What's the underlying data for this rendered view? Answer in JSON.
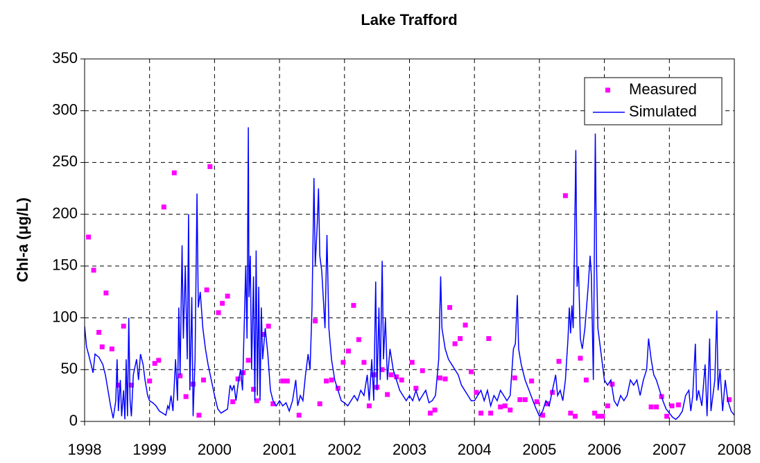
{
  "chart_data": {
    "type": "line",
    "title": "Lake Trafford",
    "ylabel": "Chl-a (μg/L)",
    "xlim": [
      1998,
      2008
    ],
    "xticks": [
      1998,
      1999,
      2000,
      2001,
      2002,
      2003,
      2004,
      2005,
      2006,
      2007,
      2008
    ],
    "ylim": [
      0,
      350
    ],
    "yticks": [
      0,
      50,
      100,
      150,
      200,
      250,
      300,
      350
    ],
    "grid": true,
    "legend": "upper right",
    "series": [
      {
        "name": "Measured",
        "type": "scatter",
        "color": "#ff00ff",
        "x": [
          1998.06,
          1998.14,
          1998.22,
          1998.27,
          1998.33,
          1998.42,
          1998.52,
          1998.6,
          1998.72,
          1999.0,
          1999.08,
          1999.14,
          1999.22,
          1999.38,
          1999.47,
          1999.56,
          1999.67,
          1999.76,
          1999.83,
          1999.88,
          1999.93,
          2000.06,
          2000.12,
          2000.2,
          2000.28,
          2000.36,
          2000.44,
          2000.52,
          2000.6,
          2000.65,
          2000.75,
          2000.83,
          2000.9,
          2001.05,
          2001.12,
          2001.3,
          2001.55,
          2001.62,
          2001.72,
          2001.8,
          2001.9,
          2001.98,
          2002.06,
          2002.14,
          2002.22,
          2002.3,
          2002.38,
          2002.45,
          2002.5,
          2002.58,
          2002.66,
          2002.72,
          2002.8,
          2002.88,
          2003.04,
          2003.1,
          2003.2,
          2003.32,
          2003.39,
          2003.47,
          2003.55,
          2003.62,
          2003.7,
          2003.78,
          2003.86,
          2003.95,
          2004.03,
          2004.1,
          2004.22,
          2004.25,
          2004.4,
          2004.47,
          2004.55,
          2004.62,
          2004.7,
          2004.78,
          2004.88,
          2004.96,
          2005.05,
          2005.12,
          2005.2,
          2005.3,
          2005.4,
          2005.48,
          2005.55,
          2005.63,
          2005.72,
          2005.85,
          2005.9,
          2005.97,
          2006.05,
          2006.12,
          2006.72,
          2006.8,
          2006.88,
          2006.96,
          2007.04,
          2007.14,
          2007.92
        ],
        "values": [
          178,
          146,
          86,
          72,
          124,
          70,
          35,
          92,
          35,
          39,
          56,
          59,
          207,
          240,
          44,
          24,
          36,
          6,
          40,
          127,
          246,
          105,
          114,
          121,
          19,
          41,
          47,
          59,
          31,
          20,
          84,
          92,
          17,
          39,
          39,
          6,
          97,
          17,
          39,
          40,
          32,
          57,
          68,
          112,
          79,
          57,
          15,
          45,
          33,
          50,
          26,
          45,
          43,
          40,
          57,
          32,
          49,
          8,
          11,
          42,
          41,
          110,
          75,
          80,
          93,
          48,
          28,
          8,
          80,
          8,
          14,
          15,
          11,
          42,
          21,
          21,
          39,
          19,
          6,
          17,
          28,
          58,
          218,
          8,
          5,
          61,
          40,
          8,
          5,
          5,
          15,
          36,
          14,
          14,
          24,
          5,
          15,
          16,
          21
        ]
      },
      {
        "name": "Simulated",
        "type": "line",
        "color": "#0000ff",
        "x": [
          1998.0,
          1998.03,
          1998.06,
          1998.1,
          1998.13,
          1998.16,
          1998.22,
          1998.28,
          1998.32,
          1998.36,
          1998.4,
          1998.44,
          1998.48,
          1998.5,
          1998.52,
          1998.55,
          1998.57,
          1998.6,
          1998.62,
          1998.64,
          1998.66,
          1998.68,
          1998.7,
          1998.72,
          1998.75,
          1998.8,
          1998.83,
          1998.86,
          1998.9,
          1998.93,
          1998.97,
          1999.0,
          1999.05,
          1999.1,
          1999.15,
          1999.2,
          1999.25,
          1999.28,
          1999.3,
          1999.33,
          1999.36,
          1999.4,
          1999.43,
          1999.45,
          1999.47,
          1999.5,
          1999.52,
          1999.55,
          1999.58,
          1999.6,
          1999.62,
          1999.65,
          1999.67,
          1999.7,
          1999.73,
          1999.75,
          1999.78,
          1999.82,
          1999.86,
          1999.9,
          1999.95,
          2000.0,
          2000.05,
          2000.1,
          2000.15,
          2000.2,
          2000.24,
          2000.27,
          2000.3,
          2000.33,
          2000.37,
          2000.4,
          2000.43,
          2000.46,
          2000.48,
          2000.5,
          2000.52,
          2000.53,
          2000.55,
          2000.57,
          2000.6,
          2000.62,
          2000.64,
          2000.66,
          2000.68,
          2000.7,
          2000.72,
          2000.74,
          2000.78,
          2000.82,
          2000.86,
          2000.9,
          2000.95,
          2001.0,
          2001.05,
          2001.1,
          2001.15,
          2001.2,
          2001.25,
          2001.28,
          2001.32,
          2001.36,
          2001.4,
          2001.44,
          2001.47,
          2001.5,
          2001.53,
          2001.55,
          2001.58,
          2001.6,
          2001.62,
          2001.65,
          2001.7,
          2001.73,
          2001.76,
          2001.8,
          2001.85,
          2001.9,
          2001.95,
          2002.0,
          2002.05,
          2002.1,
          2002.15,
          2002.2,
          2002.25,
          2002.3,
          2002.35,
          2002.38,
          2002.42,
          2002.45,
          2002.48,
          2002.5,
          2002.53,
          2002.55,
          2002.58,
          2002.6,
          2002.63,
          2002.66,
          2002.7,
          2002.75,
          2002.8,
          2002.85,
          2002.9,
          2002.95,
          2003.0,
          2003.05,
          2003.1,
          2003.15,
          2003.2,
          2003.25,
          2003.3,
          2003.35,
          2003.4,
          2003.45,
          2003.48,
          2003.5,
          2003.55,
          2003.6,
          2003.65,
          2003.7,
          2003.75,
          2003.8,
          2003.85,
          2003.9,
          2003.95,
          2004.0,
          2004.05,
          2004.1,
          2004.15,
          2004.2,
          2004.25,
          2004.3,
          2004.35,
          2004.4,
          2004.45,
          2004.5,
          2004.55,
          2004.6,
          2004.63,
          2004.66,
          2004.68,
          2004.72,
          2004.78,
          2004.84,
          2004.9,
          2004.95,
          2005.0,
          2005.05,
          2005.1,
          2005.15,
          2005.2,
          2005.25,
          2005.28,
          2005.32,
          2005.36,
          2005.4,
          2005.44,
          2005.46,
          2005.48,
          2005.5,
          2005.52,
          2005.54,
          2005.56,
          2005.58,
          2005.6,
          2005.63,
          2005.66,
          2005.7,
          2005.75,
          2005.78,
          2005.8,
          2005.83,
          2005.86,
          2005.88,
          2005.9,
          2005.94,
          2005.98,
          2006.0,
          2006.05,
          2006.1,
          2006.15,
          2006.2,
          2006.25,
          2006.3,
          2006.35,
          2006.4,
          2006.45,
          2006.5,
          2006.55,
          2006.6,
          2006.65,
          2006.68,
          2006.72,
          2006.76,
          2006.8,
          2006.85,
          2006.9,
          2006.95,
          2007.0,
          2007.05,
          2007.1,
          2007.15,
          2007.2,
          2007.25,
          2007.3,
          2007.33,
          2007.36,
          2007.4,
          2007.42,
          2007.45,
          2007.5,
          2007.55,
          2007.58,
          2007.62,
          2007.64,
          2007.66,
          2007.7,
          2007.73,
          2007.75,
          2007.78,
          2007.82,
          2007.86,
          2007.9,
          2007.95,
          2008.0
        ],
        "values": [
          92,
          72,
          65,
          55,
          47,
          65,
          62,
          55,
          45,
          30,
          15,
          3,
          20,
          60,
          10,
          40,
          5,
          30,
          2,
          60,
          5,
          100,
          20,
          5,
          45,
          60,
          40,
          65,
          55,
          40,
          25,
          20,
          18,
          15,
          10,
          8,
          6,
          15,
          12,
          25,
          10,
          60,
          20,
          110,
          45,
          170,
          80,
          150,
          60,
          200,
          30,
          120,
          5,
          60,
          220,
          110,
          125,
          90,
          70,
          55,
          40,
          25,
          12,
          8,
          10,
          12,
          35,
          30,
          35,
          20,
          40,
          50,
          30,
          100,
          150,
          80,
          284,
          120,
          160,
          50,
          140,
          20,
          165,
          25,
          130,
          20,
          110,
          60,
          90,
          65,
          30,
          20,
          15,
          20,
          15,
          18,
          10,
          20,
          40,
          15,
          25,
          20,
          45,
          65,
          50,
          110,
          235,
          150,
          190,
          225,
          160,
          145,
          90,
          180,
          90,
          60,
          40,
          30,
          20,
          18,
          15,
          20,
          25,
          20,
          30,
          25,
          45,
          20,
          60,
          20,
          135,
          30,
          110,
          40,
          155,
          60,
          100,
          40,
          70,
          50,
          40,
          30,
          25,
          20,
          25,
          20,
          30,
          20,
          25,
          30,
          18,
          20,
          25,
          60,
          140,
          90,
          70,
          60,
          55,
          50,
          45,
          35,
          30,
          25,
          20,
          20,
          25,
          30,
          20,
          30,
          15,
          25,
          20,
          30,
          25,
          20,
          25,
          70,
          75,
          122,
          70,
          55,
          40,
          30,
          20,
          12,
          5,
          10,
          20,
          15,
          30,
          45,
          25,
          30,
          20,
          40,
          80,
          110,
          85,
          112,
          90,
          170,
          262,
          130,
          150,
          80,
          70,
          90,
          130,
          160,
          140,
          40,
          278,
          150,
          90,
          70,
          50,
          40,
          35,
          40,
          20,
          15,
          25,
          20,
          25,
          40,
          35,
          40,
          25,
          40,
          50,
          80,
          60,
          45,
          40,
          30,
          20,
          12,
          8,
          4,
          2,
          5,
          10,
          25,
          30,
          10,
          25,
          75,
          20,
          30,
          15,
          55,
          5,
          80,
          10,
          20,
          40,
          107,
          30,
          50,
          10,
          40,
          20,
          10,
          6
        ]
      }
    ]
  }
}
